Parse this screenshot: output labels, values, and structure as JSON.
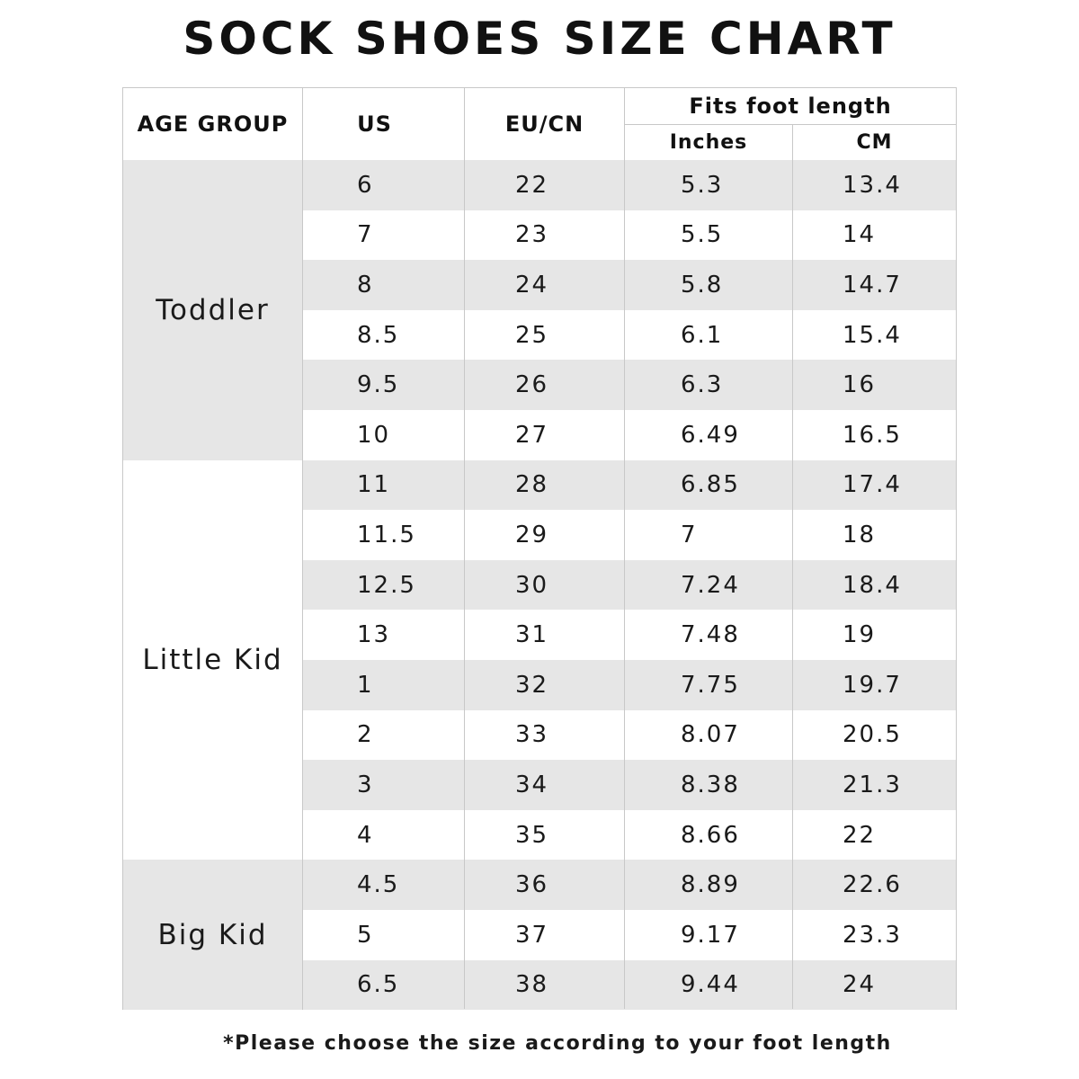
{
  "title": "SOCK SHOES SIZE CHART",
  "header": {
    "age_group": "AGE GROUP",
    "us": "US",
    "eu_cn": "EU/CN",
    "fits": "Fits foot length",
    "inches": "Inches",
    "cm": "CM"
  },
  "groups": [
    {
      "label": "Toddler",
      "rows": 6,
      "shaded": true
    },
    {
      "label": "Little Kid",
      "rows": 8,
      "shaded": false
    },
    {
      "label": "Big Kid",
      "rows": 3,
      "shaded": true
    }
  ],
  "rows": [
    {
      "us": "6",
      "eu": "22",
      "inches": "5.3",
      "cm": "13.4"
    },
    {
      "us": "7",
      "eu": "23",
      "inches": "5.5",
      "cm": "14"
    },
    {
      "us": "8",
      "eu": "24",
      "inches": "5.8",
      "cm": "14.7"
    },
    {
      "us": "8.5",
      "eu": "25",
      "inches": "6.1",
      "cm": "15.4"
    },
    {
      "us": "9.5",
      "eu": "26",
      "inches": "6.3",
      "cm": "16"
    },
    {
      "us": "10",
      "eu": "27",
      "inches": "6.49",
      "cm": "16.5"
    },
    {
      "us": "11",
      "eu": "28",
      "inches": "6.85",
      "cm": "17.4"
    },
    {
      "us": "11.5",
      "eu": "29",
      "inches": "7",
      "cm": "18"
    },
    {
      "us": "12.5",
      "eu": "30",
      "inches": "7.24",
      "cm": "18.4"
    },
    {
      "us": "13",
      "eu": "31",
      "inches": "7.48",
      "cm": "19"
    },
    {
      "us": "1",
      "eu": "32",
      "inches": "7.75",
      "cm": "19.7"
    },
    {
      "us": "2",
      "eu": "33",
      "inches": "8.07",
      "cm": "20.5"
    },
    {
      "us": "3",
      "eu": "34",
      "inches": "8.38",
      "cm": "21.3"
    },
    {
      "us": "4",
      "eu": "35",
      "inches": "8.66",
      "cm": "22"
    },
    {
      "us": "4.5",
      "eu": "36",
      "inches": "8.89",
      "cm": "22.6"
    },
    {
      "us": "5",
      "eu": "37",
      "inches": "9.17",
      "cm": "23.3"
    },
    {
      "us": "6.5",
      "eu": "38",
      "inches": "9.44",
      "cm": "24"
    }
  ],
  "note": "*Please choose the size according to your foot length",
  "colors": {
    "shade": "#e6e6e6",
    "grid": "#c8c8c8",
    "text": "#111111"
  }
}
